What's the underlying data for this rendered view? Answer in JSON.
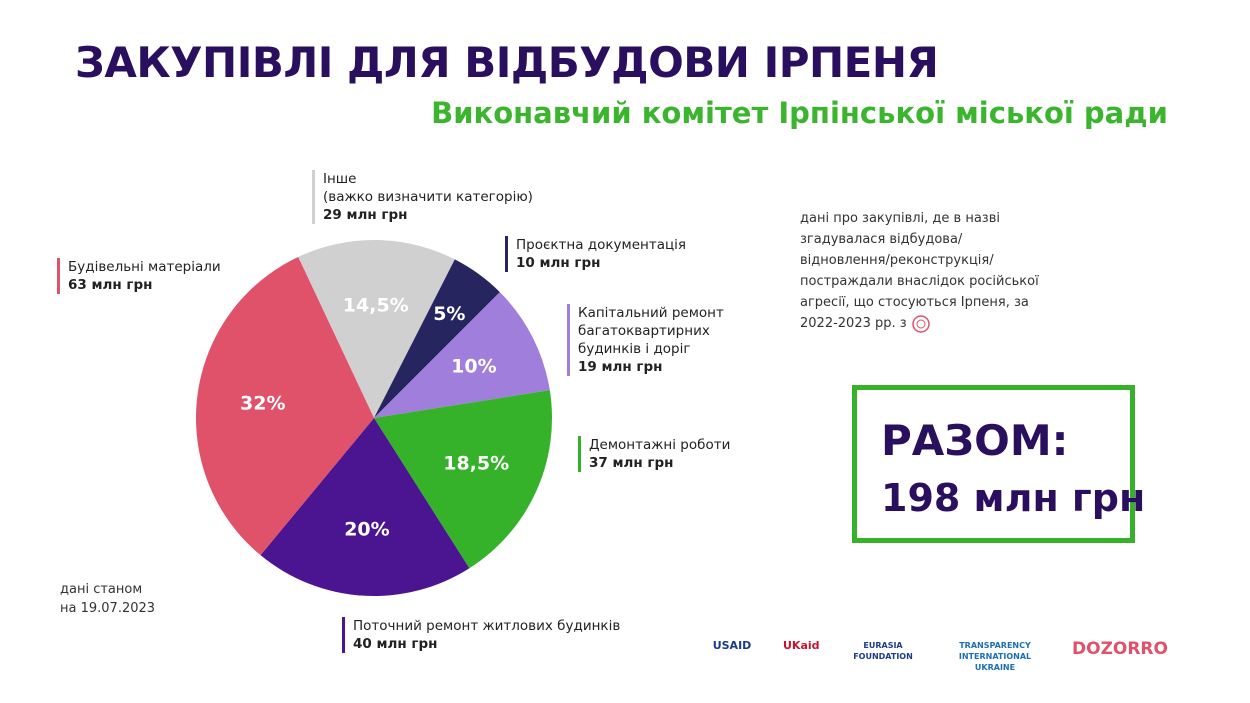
{
  "chart_data": {
    "type": "pie",
    "title": "ЗАКУПІВЛІ ДЛЯ ВІДБУДОВИ ІРПЕНЯ",
    "subtitle": "Виконавчий комітет Ірпінської міської ради",
    "categories": [
      "Інше\n(важко визначити категорію)",
      "Проєктна документація",
      "Капітальний ремонт багатоквартирних будинків і доріг",
      "Демонтажні роботи",
      "Поточний ремонт житлових будинків",
      "Будівельні матеріали"
    ],
    "values": [
      14.5,
      5,
      10,
      18.5,
      20,
      32
    ],
    "value_labels": [
      "14,5%",
      "5%",
      "10%",
      "18,5%",
      "20%",
      "32%"
    ],
    "amounts": [
      "29 млн грн",
      "10 млн грн",
      "19 млн грн",
      "37 млн грн",
      "40 млн грн",
      "63 млн грн"
    ],
    "colors": [
      "#d0d0d0",
      "#272560",
      "#a07fdc",
      "#35b22a",
      "#4b1592",
      "#e0516a"
    ]
  },
  "note": "дані про закупівлі, де в назві згадувалася відбудова/ відновлення/реконструкція/постраждали внаслідок російської агресії, що стосуються Ірпеня, за 2022-2023 рр. з",
  "date_note": "дані станом\nна 19.07.2023",
  "total": {
    "label": "РАЗОМ:",
    "value": "198 млн грн"
  },
  "logos": [
    "USAID",
    "UKaid",
    "EURASIA FOUNDATION",
    "TRANSPARENCY INTERNATIONAL UKRAINE",
    "DOZORRO"
  ]
}
